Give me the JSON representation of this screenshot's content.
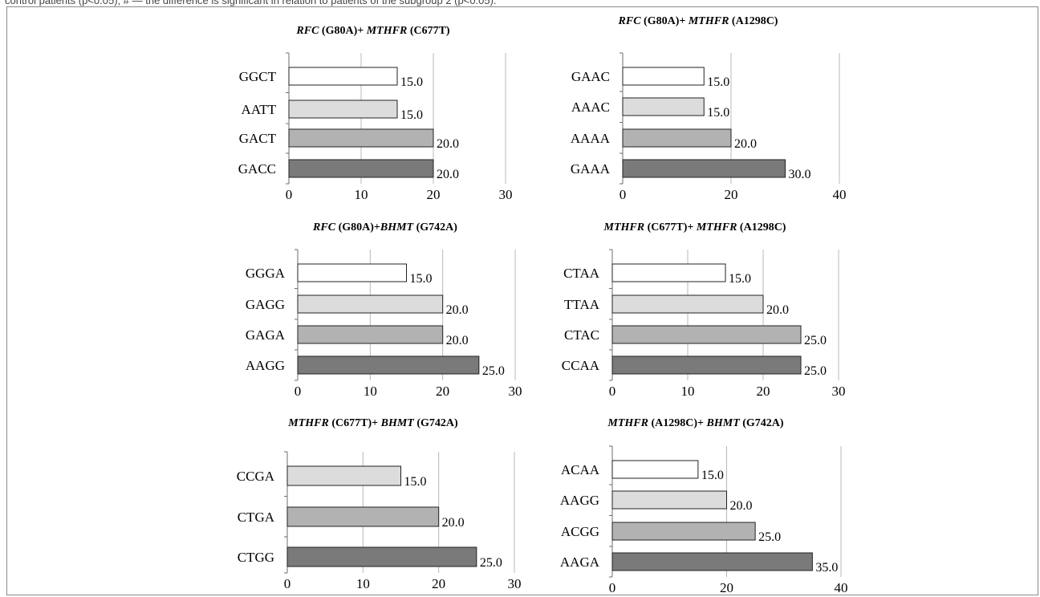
{
  "figure": {
    "caption_fragment": "control patients (p<0.05); # — the difference is significant in relation to patients of the subgroup 2 (p<0.05)."
  },
  "colors": {
    "bar_1": "#ffffff",
    "bar_2": "#dcdcdc",
    "bar_3": "#b2b2b2",
    "bar_4": "#7a7a7a",
    "grid": "#b8b8b8",
    "frame": "#8a8a8a"
  },
  "chart_data": [
    {
      "type": "bar",
      "orientation": "horizontal",
      "title_parts": [
        {
          "text": "RFC",
          "italic": true
        },
        {
          "text": " (G80A)+ ",
          "italic": false
        },
        {
          "text": "MTHFR",
          "italic": true
        },
        {
          "text": " (C677T)",
          "italic": false
        }
      ],
      "categories": [
        "GGCT",
        "AATT",
        "GACT",
        "GACC"
      ],
      "values": [
        15.0,
        15.0,
        20.0,
        20.0
      ],
      "value_labels": [
        "15.0",
        "15.0",
        "20.0",
        "20.0"
      ],
      "fill_keys": [
        "bar_1",
        "bar_2",
        "bar_3",
        "bar_4"
      ],
      "xlim": [
        0,
        30
      ],
      "xticks": [
        0,
        10,
        20,
        30
      ],
      "grid": true
    },
    {
      "type": "bar",
      "orientation": "horizontal",
      "title_parts": [
        {
          "text": "RFC",
          "italic": true
        },
        {
          "text": " (G80A)+ ",
          "italic": false
        },
        {
          "text": "MTHFR",
          "italic": true
        },
        {
          "text": " (A1298C)",
          "italic": false
        }
      ],
      "categories": [
        "GAAC",
        "AAAC",
        "AAAA",
        "GAAA"
      ],
      "values": [
        15.0,
        15.0,
        20.0,
        30.0
      ],
      "value_labels": [
        "15.0",
        "15.0",
        "20.0",
        "30.0"
      ],
      "fill_keys": [
        "bar_1",
        "bar_2",
        "bar_3",
        "bar_4"
      ],
      "xlim": [
        0,
        40
      ],
      "xticks": [
        0,
        20,
        40
      ],
      "grid": true
    },
    {
      "type": "bar",
      "orientation": "horizontal",
      "title_parts": [
        {
          "text": "RFC",
          "italic": true
        },
        {
          "text": " (G80A)+",
          "italic": false
        },
        {
          "text": "BHMT",
          "italic": true
        },
        {
          "text": " (G742A)",
          "italic": false
        }
      ],
      "categories": [
        "GGGA",
        "GAGG",
        "GAGA",
        "AAGG"
      ],
      "values": [
        15.0,
        20.0,
        20.0,
        25.0
      ],
      "value_labels": [
        "15.0",
        "20.0",
        "20.0",
        "25.0"
      ],
      "fill_keys": [
        "bar_1",
        "bar_2",
        "bar_3",
        "bar_4"
      ],
      "xlim": [
        0,
        30
      ],
      "xticks": [
        0,
        10,
        20,
        30
      ],
      "grid": true
    },
    {
      "type": "bar",
      "orientation": "horizontal",
      "title_parts": [
        {
          "text": "MTHFR",
          "italic": true
        },
        {
          "text": " (C677T)+ ",
          "italic": false
        },
        {
          "text": "MTHFR",
          "italic": true
        },
        {
          "text": " (A1298C)",
          "italic": false
        }
      ],
      "categories": [
        "CTAA",
        "TTAA",
        "CTAC",
        "CCAA"
      ],
      "values": [
        15.0,
        20.0,
        25.0,
        25.0
      ],
      "value_labels": [
        "15.0",
        "20.0",
        "25.0",
        "25.0"
      ],
      "fill_keys": [
        "bar_1",
        "bar_2",
        "bar_3",
        "bar_4"
      ],
      "xlim": [
        0,
        30
      ],
      "xticks": [
        0,
        10,
        20,
        30
      ],
      "grid": true
    },
    {
      "type": "bar",
      "orientation": "horizontal",
      "title_parts": [
        {
          "text": "MTHFR",
          "italic": true
        },
        {
          "text": " (C677T)+ ",
          "italic": false
        },
        {
          "text": "BHMT",
          "italic": true
        },
        {
          "text": " (G742A)",
          "italic": false
        }
      ],
      "categories": [
        "CCGA",
        "CTGA",
        "CTGG"
      ],
      "values": [
        15.0,
        20.0,
        25.0
      ],
      "value_labels": [
        "15.0",
        "20.0",
        "25.0"
      ],
      "fill_keys": [
        "bar_2",
        "bar_3",
        "bar_4"
      ],
      "xlim": [
        0,
        30
      ],
      "xticks": [
        0,
        10,
        20,
        30
      ],
      "grid": true
    },
    {
      "type": "bar",
      "orientation": "horizontal",
      "title_parts": [
        {
          "text": "MTHFR",
          "italic": true
        },
        {
          "text": " (A1298C)+ ",
          "italic": false
        },
        {
          "text": "BHMT",
          "italic": true
        },
        {
          "text": " (G742A)",
          "italic": false
        }
      ],
      "categories": [
        "ACAA",
        "AAGG",
        "ACGG",
        "AAGA"
      ],
      "values": [
        15.0,
        20.0,
        25.0,
        35.0
      ],
      "value_labels": [
        "15.0",
        "20.0",
        "25.0",
        "35.0"
      ],
      "fill_keys": [
        "bar_1",
        "bar_2",
        "bar_3",
        "bar_4"
      ],
      "xlim": [
        0,
        40
      ],
      "xticks": [
        0,
        20,
        40
      ],
      "grid": true
    }
  ]
}
